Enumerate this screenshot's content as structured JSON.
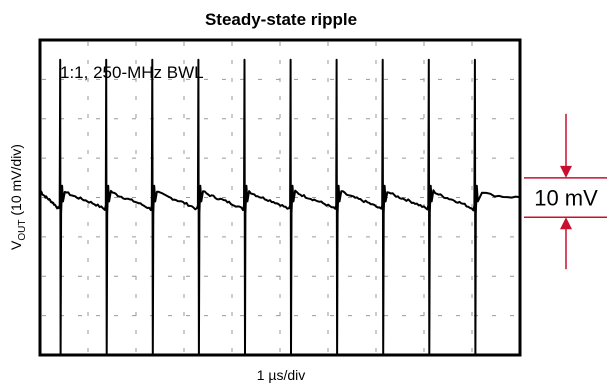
{
  "chart_data": {
    "type": "line",
    "title": "Steady-state ripple",
    "annotation": "1:1, 250-MHz BWL",
    "xlabel": "1 µs/div",
    "ylabel": {
      "prefix": "V",
      "subscript": "OUT",
      "suffix": " (10 mV/div)"
    },
    "grid": true,
    "divisions": {
      "x": 10,
      "y": 8
    },
    "x_units": "µs",
    "y_units": "mV",
    "xlim": [
      0,
      10
    ],
    "ylim": [
      -40,
      40
    ],
    "series": [
      {
        "baseline_mV": 0,
        "switching_period_us": 0.96,
        "first_spike_us": 0.42,
        "spike_peak_mV": 35,
        "spike_trough_mV": -40,
        "sag_before_spike_mV": -3,
        "bump_after_spike_mV": 2,
        "color": "#000000"
      }
    ],
    "measurement": {
      "label": "10 mV",
      "value_mV": 10,
      "color": "#c8102e"
    }
  }
}
